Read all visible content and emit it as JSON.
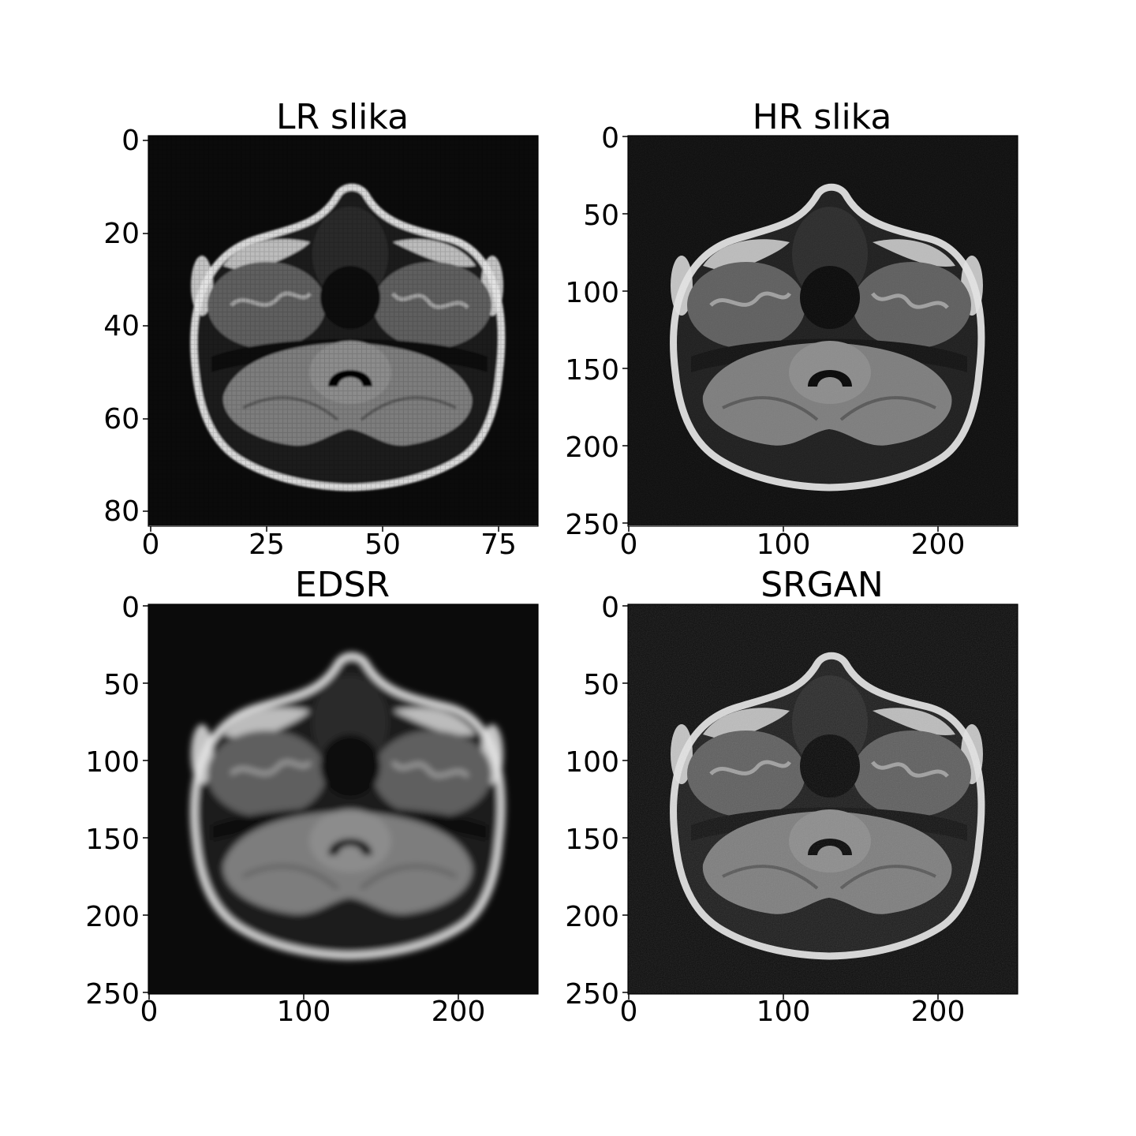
{
  "panels": [
    {
      "id": "lr",
      "title": "LR slika",
      "x_ticks": [
        "0",
        "25",
        "50",
        "75"
      ],
      "y_ticks": [
        "0",
        "20",
        "40",
        "60",
        "80"
      ],
      "x_range": [
        0,
        84
      ],
      "y_range": [
        0,
        84
      ],
      "image": "axial brain MRI, low resolution (pixelated)"
    },
    {
      "id": "hr",
      "title": "HR slika",
      "x_ticks": [
        "0",
        "100",
        "200"
      ],
      "y_ticks": [
        "0",
        "50",
        "100",
        "150",
        "200",
        "250"
      ],
      "x_range": [
        0,
        252
      ],
      "y_range": [
        0,
        252
      ],
      "image": "axial brain MRI, high resolution"
    },
    {
      "id": "edsr",
      "title": "EDSR",
      "x_ticks": [
        "0",
        "100",
        "200"
      ],
      "y_ticks": [
        "0",
        "50",
        "100",
        "150",
        "200",
        "250"
      ],
      "x_range": [
        0,
        252
      ],
      "y_range": [
        0,
        252
      ],
      "image": "axial brain MRI, EDSR super-resolution (smooth)"
    },
    {
      "id": "srgan",
      "title": "SRGAN",
      "x_ticks": [
        "0",
        "100",
        "200"
      ],
      "y_ticks": [
        "0",
        "50",
        "100",
        "150",
        "200",
        "250"
      ],
      "x_range": [
        0,
        252
      ],
      "y_range": [
        0,
        252
      ],
      "image": "axial brain MRI, SRGAN super-resolution (textured)"
    }
  ],
  "colors": {
    "background": "#0b0b0b",
    "tissue": "#7d7d7d",
    "bone": "#d8d8d8"
  }
}
